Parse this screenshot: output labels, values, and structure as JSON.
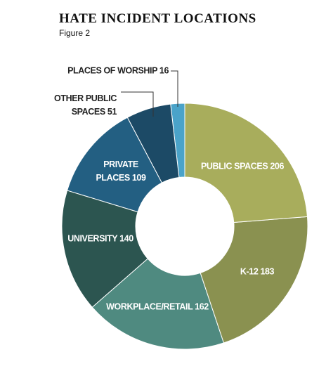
{
  "chart_data": {
    "type": "donut",
    "title": "HATE INCIDENT LOCATIONS",
    "subtitle": "Figure 2",
    "categories": [
      "PUBLIC SPACES",
      "K-12",
      "WORKPLACE/RETAIL",
      "UNIVERSITY",
      "PRIVATE PLACES",
      "OTHER PUBLIC SPACES",
      "PLACES OF WORSHIP"
    ],
    "values": [
      206,
      183,
      162,
      140,
      109,
      51,
      16
    ],
    "colors": [
      "#a8ad5c",
      "#8a9150",
      "#4f8a80",
      "#2c5550",
      "#235f82",
      "#1c4a66",
      "#4aa3c9"
    ]
  }
}
